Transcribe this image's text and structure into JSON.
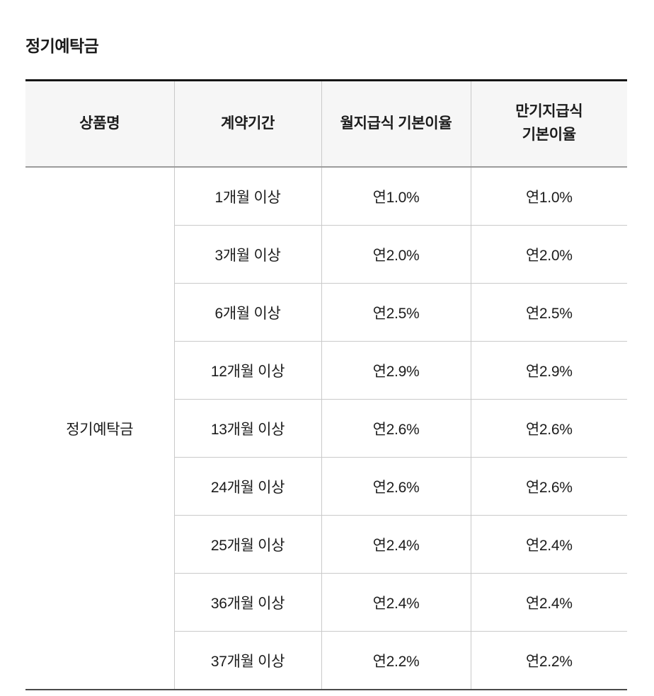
{
  "page": {
    "title": "정기예탁금"
  },
  "table": {
    "columns": [
      "상품명",
      "계약기간",
      "월지급식 기본이율",
      "만기지급식 기본이율"
    ],
    "product_name": "정기예탁금",
    "rows": [
      {
        "period": "1개월 이상",
        "monthly": "연1.0%",
        "maturity": "연1.0%"
      },
      {
        "period": "3개월 이상",
        "monthly": "연2.0%",
        "maturity": "연2.0%"
      },
      {
        "period": "6개월 이상",
        "monthly": "연2.5%",
        "maturity": "연2.5%"
      },
      {
        "period": "12개월 이상",
        "monthly": "연2.9%",
        "maturity": "연2.9%"
      },
      {
        "period": "13개월 이상",
        "monthly": "연2.6%",
        "maturity": "연2.6%"
      },
      {
        "period": "24개월 이상",
        "monthly": "연2.6%",
        "maturity": "연2.6%"
      },
      {
        "period": "25개월 이상",
        "monthly": "연2.4%",
        "maturity": "연2.4%"
      },
      {
        "period": "36개월 이상",
        "monthly": "연2.4%",
        "maturity": "연2.4%"
      },
      {
        "period": "37개월 이상",
        "monthly": "연2.2%",
        "maturity": "연2.2%"
      }
    ]
  }
}
